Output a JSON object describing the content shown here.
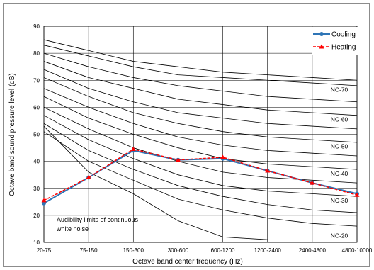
{
  "chart_data": {
    "type": "line",
    "xlabel": "Octave band center frequency (Hz)",
    "ylabel": "Octave band sound pressure level (dB)",
    "ylim": [
      10,
      90
    ],
    "yticks": [
      10,
      20,
      30,
      40,
      50,
      60,
      70,
      80,
      90
    ],
    "categories": [
      "20-75",
      "75-150",
      "150-300",
      "300-600",
      "600-1200",
      "1200-2400",
      "2400-4800",
      "4800-10000"
    ],
    "grid": true,
    "legend_position": "top-right",
    "series": [
      {
        "name": "Cooling",
        "color": "#2e75b6",
        "style": "solid",
        "marker": "circle",
        "values": [
          24.5,
          34,
          44,
          40.5,
          41,
          36.5,
          32,
          28
        ]
      },
      {
        "name": "Heating",
        "color": "#ff0000",
        "style": "dashed",
        "marker": "triangle",
        "values": [
          25.5,
          34,
          44.5,
          40.5,
          41.5,
          36.5,
          32,
          27.5
        ]
      }
    ],
    "nc_curves": [
      {
        "level": 20,
        "values": [
          51,
          40,
          33,
          26,
          22,
          19,
          17,
          16
        ]
      },
      {
        "level": 25,
        "values": [
          54,
          44,
          37,
          31,
          27,
          24,
          22,
          21
        ]
      },
      {
        "level": 30,
        "values": [
          57,
          48,
          41,
          35,
          31,
          29,
          28,
          27
        ]
      },
      {
        "level": 35,
        "values": [
          60,
          52,
          45,
          40,
          36,
          34,
          33,
          32
        ]
      },
      {
        "level": 40,
        "values": [
          64,
          56,
          50,
          45,
          41,
          39,
          38,
          37
        ]
      },
      {
        "level": 45,
        "values": [
          67,
          60,
          54,
          49,
          46,
          44,
          43,
          42
        ]
      },
      {
        "level": 50,
        "values": [
          71,
          64,
          58,
          54,
          51,
          49,
          48,
          47
        ]
      },
      {
        "level": 55,
        "values": [
          74,
          67,
          62,
          58,
          56,
          54,
          53,
          52
        ]
      },
      {
        "level": 60,
        "values": [
          77,
          71,
          67,
          63,
          61,
          59,
          58,
          57
        ]
      },
      {
        "level": 65,
        "values": [
          80,
          75,
          71,
          68,
          66,
          64,
          63,
          62
        ]
      },
      {
        "level": 70,
        "values": [
          83,
          79,
          75,
          72,
          71,
          70,
          69,
          68
        ]
      },
      {
        "level": 75,
        "values": [
          85,
          81,
          77,
          75,
          73,
          72,
          71,
          70
        ]
      }
    ],
    "nc_labels": [
      {
        "text": "NC-20",
        "value": 12.5
      },
      {
        "text": "NC-30",
        "value": 25.5
      },
      {
        "text": "NC-40",
        "value": 35.5
      },
      {
        "text": "NC-50",
        "value": 45.5
      },
      {
        "text": "NC-60",
        "value": 55.5
      },
      {
        "text": "NC-70",
        "value": 66.5
      }
    ],
    "annotation": [
      "Audibility limits of continuous",
      "white noise"
    ],
    "audibility_curve": {
      "values": [
        53,
        36,
        28,
        18,
        12,
        11
      ]
    }
  }
}
